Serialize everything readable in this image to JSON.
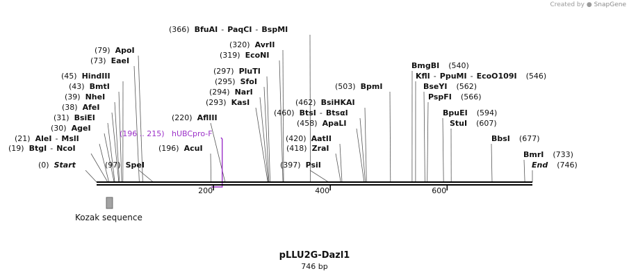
{
  "watermark": {
    "prefix": "Created by",
    "brand": "SnapGene"
  },
  "plasmid": {
    "name": "pLLU2G-Dazl1",
    "length": 746,
    "length_label": "746 bp"
  },
  "ruler": {
    "ticks": [
      200,
      400,
      600
    ]
  },
  "sites": [
    {
      "id": "bfuai",
      "pos": 366,
      "pos_label": "(366)",
      "names": [
        "BfuAI",
        "PaqCI",
        "BspMI"
      ]
    },
    {
      "id": "apoi",
      "pos": 79,
      "pos_label": "(79)",
      "names": [
        "ApoI"
      ]
    },
    {
      "id": "eaei",
      "pos": 73,
      "pos_label": "(73)",
      "names": [
        "EaeI"
      ]
    },
    {
      "id": "hindiii",
      "pos": 45,
      "pos_label": "(45)",
      "names": [
        "HindIII"
      ]
    },
    {
      "id": "bmti",
      "pos": 43,
      "pos_label": "(43)",
      "names": [
        "BmtI"
      ]
    },
    {
      "id": "nhei",
      "pos": 39,
      "pos_label": "(39)",
      "names": [
        "NheI"
      ]
    },
    {
      "id": "afei",
      "pos": 38,
      "pos_label": "(38)",
      "names": [
        "AfeI"
      ]
    },
    {
      "id": "bsiei",
      "pos": 31,
      "pos_label": "(31)",
      "names": [
        "BsiEI"
      ]
    },
    {
      "id": "agei",
      "pos": 30,
      "pos_label": "(30)",
      "names": [
        "AgeI"
      ]
    },
    {
      "id": "alei",
      "pos": 21,
      "pos_label": "(21)",
      "names": [
        "AleI",
        "MslI"
      ]
    },
    {
      "id": "btgi",
      "pos": 19,
      "pos_label": "(19)",
      "names": [
        "BtgI",
        "NcoI"
      ]
    },
    {
      "id": "start",
      "pos": 0,
      "pos_label": "(0)",
      "names": [
        "Start"
      ],
      "italic": true
    },
    {
      "id": "spei",
      "pos": 97,
      "pos_label": "(97)",
      "names": [
        "SpeI"
      ]
    },
    {
      "id": "afliii",
      "pos": 220,
      "pos_label": "(220)",
      "names": [
        "AflIII"
      ]
    },
    {
      "id": "acui",
      "pos": 196,
      "pos_label": "(196)",
      "names": [
        "AcuI"
      ]
    },
    {
      "id": "avrii",
      "pos": 320,
      "pos_label": "(320)",
      "names": [
        "AvrII"
      ]
    },
    {
      "id": "econi",
      "pos": 319,
      "pos_label": "(319)",
      "names": [
        "EcoNI"
      ]
    },
    {
      "id": "pluti",
      "pos": 297,
      "pos_label": "(297)",
      "names": [
        "PluTI"
      ]
    },
    {
      "id": "sfoi",
      "pos": 295,
      "pos_label": "(295)",
      "names": [
        "SfoI"
      ]
    },
    {
      "id": "nari",
      "pos": 294,
      "pos_label": "(294)",
      "names": [
        "NarI"
      ]
    },
    {
      "id": "kasi",
      "pos": 293,
      "pos_label": "(293)",
      "names": [
        "KasI"
      ]
    },
    {
      "id": "bsihkai",
      "pos": 462,
      "pos_label": "(462)",
      "names": [
        "BsiHKAI"
      ]
    },
    {
      "id": "btsi",
      "pos": 460,
      "pos_label": "(460)",
      "names": [
        "BtsI",
        "BtsαI"
      ]
    },
    {
      "id": "apali",
      "pos": 458,
      "pos_label": "(458)",
      "names": [
        "ApaLI"
      ]
    },
    {
      "id": "aatii",
      "pos": 420,
      "pos_label": "(420)",
      "names": [
        "AatII"
      ]
    },
    {
      "id": "zrai",
      "pos": 418,
      "pos_label": "(418)",
      "names": [
        "ZraI"
      ]
    },
    {
      "id": "psii",
      "pos": 397,
      "pos_label": "(397)",
      "names": [
        "PsiI"
      ]
    },
    {
      "id": "bpmi",
      "pos": 503,
      "pos_label": "(503)",
      "names": [
        "BpmI"
      ]
    },
    {
      "id": "bmgbi",
      "pos": 540,
      "pos_label": "(540)",
      "names": [
        "BmgBI"
      ]
    },
    {
      "id": "kfli",
      "pos": 546,
      "pos_label": "(546)",
      "names": [
        "KflI",
        "PpuMI",
        "EcoO109I"
      ]
    },
    {
      "id": "bseyi",
      "pos": 562,
      "pos_label": "(562)",
      "names": [
        "BseYI"
      ]
    },
    {
      "id": "pspfi",
      "pos": 566,
      "pos_label": "(566)",
      "names": [
        "PspFI"
      ]
    },
    {
      "id": "bpuei",
      "pos": 594,
      "pos_label": "(594)",
      "names": [
        "BpuEI"
      ]
    },
    {
      "id": "stui",
      "pos": 607,
      "pos_label": "(607)",
      "names": [
        "StuI"
      ]
    },
    {
      "id": "bbsi",
      "pos": 677,
      "pos_label": "(677)",
      "names": [
        "BbsI"
      ]
    },
    {
      "id": "bmri",
      "pos": 733,
      "pos_label": "(733)",
      "names": [
        "BmrI"
      ]
    },
    {
      "id": "end",
      "pos": 746,
      "pos_label": "(746)",
      "names": [
        "End"
      ],
      "italic": true
    }
  ],
  "primer": {
    "name": "hUBCpro-F",
    "range_label": "(196 .. 215)",
    "start": 196,
    "end": 215,
    "color": "#9b30c8"
  },
  "features": [
    {
      "name": "Kozak sequence",
      "color": "#a3a3a3"
    }
  ],
  "colors": {
    "backbone": "#000000",
    "cut_line": "#555555"
  }
}
